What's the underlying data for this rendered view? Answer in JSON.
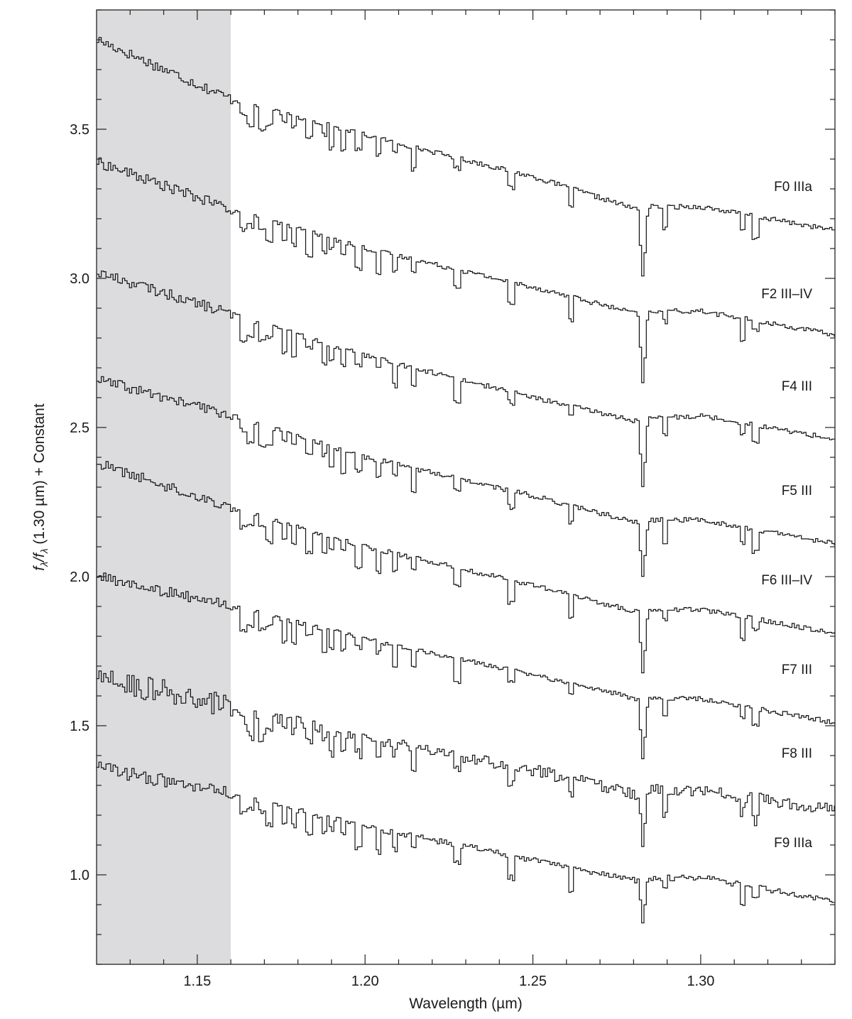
{
  "chart_data": {
    "type": "line",
    "title": "",
    "xlabel": "Wavelength (µm)",
    "ylabel_main": "f",
    "ylabel_sub": "λ",
    "ylabel_mid": "/f",
    "ylabel_sub2": "λ",
    "ylabel_rest": " (1.30 µm) + Constant",
    "xlim": [
      1.12,
      1.34
    ],
    "ylim": [
      0.7,
      3.9
    ],
    "x_ticks": [
      {
        "value": 1.15,
        "label": "1.15"
      },
      {
        "value": 1.2,
        "label": "1.20"
      },
      {
        "value": 1.25,
        "label": "1.25"
      },
      {
        "value": 1.3,
        "label": "1.30"
      }
    ],
    "y_ticks": [
      {
        "value": 1.0,
        "label": "1.0"
      },
      {
        "value": 1.5,
        "label": "1.5"
      },
      {
        "value": 2.0,
        "label": "2.0"
      },
      {
        "value": 2.5,
        "label": "2.5"
      },
      {
        "value": 3.0,
        "label": "3.0"
      },
      {
        "value": 3.5,
        "label": "3.5"
      }
    ],
    "shaded_region": {
      "x_start": 1.12,
      "x_end": 1.16,
      "color": "#dcdcde"
    },
    "line_color": "#111111",
    "series": [
      {
        "name": "F0 IIIa",
        "label_y": 3.31,
        "x": [
          1.12,
          1.16,
          1.2,
          1.25,
          1.281,
          1.2825,
          1.284,
          1.3,
          1.34
        ],
        "y": [
          3.8,
          3.6,
          3.48,
          3.34,
          3.23,
          2.99,
          3.24,
          3.24,
          3.16
        ],
        "noise": 0.008
      },
      {
        "name": "F2 III–IV",
        "label_y": 2.95,
        "x": [
          1.12,
          1.16,
          1.2,
          1.25,
          1.281,
          1.2825,
          1.284,
          1.3,
          1.34
        ],
        "y": [
          3.39,
          3.23,
          3.1,
          2.97,
          2.88,
          2.63,
          2.89,
          2.89,
          2.81
        ],
        "noise": 0.008
      },
      {
        "name": "F4 III",
        "label_y": 2.64,
        "x": [
          1.12,
          1.16,
          1.2,
          1.25,
          1.281,
          1.2825,
          1.284,
          1.3,
          1.34
        ],
        "y": [
          3.02,
          2.88,
          2.74,
          2.6,
          2.52,
          2.28,
          2.53,
          2.54,
          2.46
        ],
        "noise": 0.008
      },
      {
        "name": "F5 III",
        "label_y": 2.29,
        "x": [
          1.12,
          1.16,
          1.2,
          1.25,
          1.281,
          1.2825,
          1.284,
          1.3,
          1.34
        ],
        "y": [
          2.66,
          2.54,
          2.4,
          2.27,
          2.18,
          1.98,
          2.19,
          2.19,
          2.11
        ],
        "noise": 0.008
      },
      {
        "name": "F6 III–IV",
        "label_y": 1.99,
        "x": [
          1.12,
          1.16,
          1.2,
          1.25,
          1.281,
          1.2825,
          1.284,
          1.3,
          1.34
        ],
        "y": [
          2.38,
          2.23,
          2.1,
          1.97,
          1.88,
          1.67,
          1.89,
          1.89,
          1.81
        ],
        "noise": 0.008
      },
      {
        "name": "F7 III",
        "label_y": 1.69,
        "x": [
          1.12,
          1.16,
          1.2,
          1.25,
          1.281,
          1.2825,
          1.284,
          1.3,
          1.34
        ],
        "y": [
          2.0,
          1.9,
          1.79,
          1.67,
          1.59,
          1.38,
          1.59,
          1.59,
          1.51
        ],
        "noise": 0.008
      },
      {
        "name": "F8 III",
        "label_y": 1.41,
        "x": [
          1.12,
          1.16,
          1.2,
          1.25,
          1.281,
          1.2825,
          1.284,
          1.3,
          1.34
        ],
        "y": [
          1.66,
          1.56,
          1.46,
          1.35,
          1.27,
          1.09,
          1.29,
          1.28,
          1.22
        ],
        "noise": 0.02
      },
      {
        "name": "F9 IIIa",
        "label_y": 1.11,
        "x": [
          1.12,
          1.16,
          1.2,
          1.25,
          1.281,
          1.2825,
          1.284,
          1.3,
          1.34
        ],
        "y": [
          1.36,
          1.27,
          1.16,
          1.05,
          0.98,
          0.83,
          0.99,
          0.99,
          0.91
        ],
        "noise": 0.01
      }
    ]
  }
}
